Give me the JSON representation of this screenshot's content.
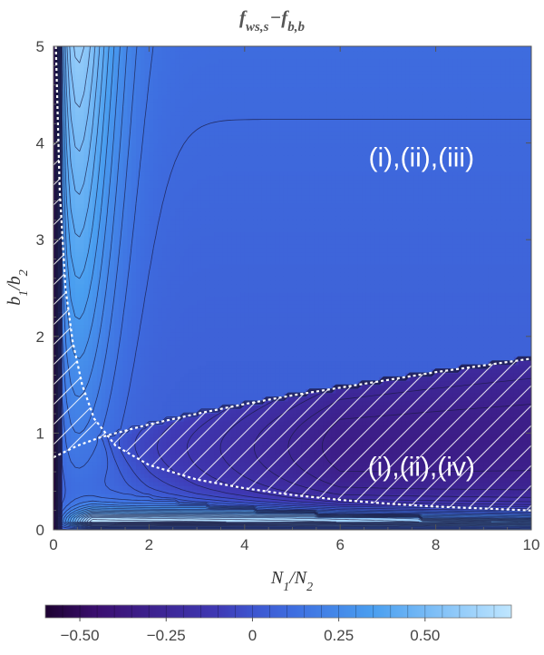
{
  "chart_data": {
    "type": "heatmap",
    "title": "f_{ws,s} − f_{b,b}",
    "title_parts": {
      "f1": "f",
      "sub1": "ws,s",
      "minus": "−",
      "f2": "f",
      "sub2": "b,b"
    },
    "xlabel_parts": {
      "n1": "N",
      "s1": "1",
      "slash": "/",
      "n2": "N",
      "s2": "2"
    },
    "ylabel_parts": {
      "b1": "b",
      "s1": "1",
      "slash": "/",
      "b2": "b",
      "s2": "2"
    },
    "xlim": [
      0,
      10
    ],
    "ylim": [
      0,
      5
    ],
    "x_ticks": [
      "0",
      "2",
      "4",
      "6",
      "8",
      "10"
    ],
    "y_ticks": [
      "0",
      "1",
      "2",
      "3",
      "4",
      "5"
    ],
    "contour_levels_count": 30,
    "colorbar": {
      "range": [
        -0.6,
        0.75
      ],
      "ticks": [
        -0.5,
        -0.25,
        0,
        0.25,
        0.5
      ],
      "tick_labels": [
        "−0.50",
        "−0.25",
        "0",
        "0.25",
        "0.50"
      ],
      "colors": [
        "#1c0130",
        "#3b0f70",
        "#3f39b4",
        "#3d55cf",
        "#3e6ee0",
        "#4a9ff0",
        "#bfe6ff"
      ]
    },
    "regions": [
      {
        "label": "(i),(ii),(iii)",
        "x": 7.7,
        "y": 3.85
      },
      {
        "label": "(i),(ii),(iv)",
        "x": 7.7,
        "y": 0.65
      }
    ],
    "boundaries": [
      {
        "name": "vertical-left-boundary",
        "points": [
          [
            0.05,
            5.0
          ],
          [
            0.13,
            3.5
          ],
          [
            0.25,
            2.5
          ],
          [
            0.4,
            1.95
          ],
          [
            0.6,
            1.5
          ],
          [
            0.85,
            1.15
          ],
          [
            1.3,
            0.87
          ],
          [
            2.0,
            0.67
          ],
          [
            3.0,
            0.52
          ],
          [
            4.0,
            0.43
          ],
          [
            5.0,
            0.36
          ],
          [
            6.0,
            0.31
          ],
          [
            7.0,
            0.27
          ],
          [
            8.0,
            0.24
          ],
          [
            9.0,
            0.22
          ],
          [
            10.0,
            0.2
          ]
        ]
      },
      {
        "name": "upper-boundary",
        "points": [
          [
            0.0,
            0.75
          ],
          [
            0.5,
            0.87
          ],
          [
            1.0,
            0.96
          ],
          [
            2.0,
            1.09
          ],
          [
            3.0,
            1.2
          ],
          [
            4.0,
            1.3
          ],
          [
            5.0,
            1.39
          ],
          [
            6.0,
            1.47
          ],
          [
            7.0,
            1.55
          ],
          [
            8.0,
            1.63
          ],
          [
            9.0,
            1.7
          ],
          [
            10.0,
            1.77
          ]
        ]
      }
    ]
  }
}
